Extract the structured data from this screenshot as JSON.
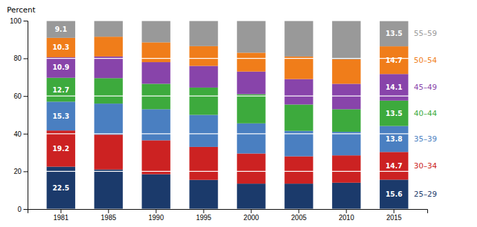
{
  "chart_data": {
    "type": "bar",
    "stacked": true,
    "ylabel": "Percent",
    "categories": [
      "1981",
      "1985",
      "1990",
      "1995",
      "2000",
      "2005",
      "2010",
      "2015"
    ],
    "series": [
      {
        "name": "25–29",
        "color": "#1b3a6b",
        "values": [
          22.5,
          21.0,
          18.5,
          15.5,
          13.5,
          13.5,
          14.0,
          15.6
        ],
        "value_labels": [
          "22.5",
          null,
          null,
          null,
          null,
          null,
          null,
          "15.6"
        ]
      },
      {
        "name": "30–34",
        "color": "#cc2222",
        "values": [
          19.2,
          18.5,
          18.0,
          17.5,
          16.0,
          14.5,
          14.5,
          14.7
        ],
        "value_labels": [
          "19.2",
          null,
          null,
          null,
          null,
          null,
          null,
          "14.7"
        ]
      },
      {
        "name": "35–39",
        "color": "#4a7fc1",
        "values": [
          15.3,
          16.5,
          16.5,
          17.0,
          16.0,
          13.5,
          12.5,
          13.8
        ],
        "value_labels": [
          "15.3",
          null,
          null,
          null,
          null,
          null,
          null,
          "13.8"
        ]
      },
      {
        "name": "40–44",
        "color": "#3daa3d",
        "values": [
          12.7,
          13.5,
          13.5,
          14.5,
          15.5,
          14.0,
          12.0,
          13.5
        ],
        "value_labels": [
          "12.7",
          null,
          null,
          null,
          null,
          null,
          null,
          "13.5"
        ]
      },
      {
        "name": "45–49",
        "color": "#8844aa",
        "values": [
          10.9,
          11.5,
          11.5,
          11.5,
          12.0,
          13.5,
          13.5,
          14.1
        ],
        "value_labels": [
          "10.9",
          null,
          null,
          null,
          null,
          null,
          null,
          "14.1"
        ]
      },
      {
        "name": "50–54",
        "color": "#f07d1a",
        "values": [
          10.3,
          10.5,
          10.5,
          10.5,
          10.0,
          12.0,
          13.0,
          14.7
        ],
        "value_labels": [
          "10.3",
          null,
          null,
          null,
          null,
          null,
          null,
          "14.7"
        ]
      },
      {
        "name": "55–59",
        "color": "#999999",
        "values": [
          9.1,
          8.5,
          11.5,
          13.5,
          17.0,
          19.0,
          20.5,
          13.5
        ],
        "value_labels": [
          "9.1",
          null,
          null,
          null,
          null,
          null,
          null,
          "13.5"
        ]
      }
    ],
    "data_labels": true,
    "ylim": [
      0,
      100
    ],
    "yticks": [
      0,
      20,
      40,
      60,
      80,
      100
    ],
    "grid": true
  }
}
